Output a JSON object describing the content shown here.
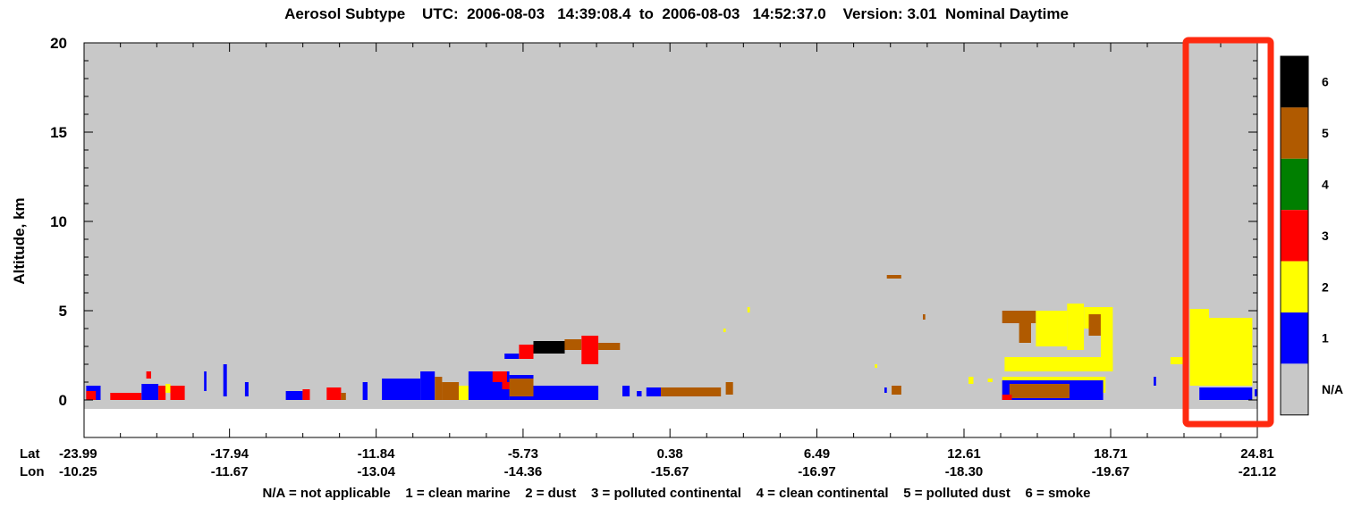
{
  "chart_data": {
    "type": "heatmap",
    "title": "Aerosol Subtype    UTC:  2006-08-03   14:39:08.4  to  2006-08-03   14:52:37.0    Version: 3.01  Nominal Daytime",
    "ylabel": "Altitude, km",
    "ylim": [
      -0.5,
      20
    ],
    "yticks": [
      "0",
      "5",
      "10",
      "15",
      "20"
    ],
    "x_row_labels": [
      "Lat",
      "Lon"
    ],
    "lat_ticks": [
      "-23.99",
      "-17.94",
      "-11.84",
      "-5.73",
      "0.38",
      "6.49",
      "12.61",
      "18.71",
      "24.81"
    ],
    "lon_ticks": [
      "-10.25",
      "-11.67",
      "-13.04",
      "-14.36",
      "-15.67",
      "-16.97",
      "-18.30",
      "-19.67",
      "-21.12"
    ],
    "lat_range": [
      -23.99,
      24.81
    ],
    "legend": {
      "placement": "right",
      "entries": [
        {
          "label": "6",
          "color": "#000000"
        },
        {
          "label": "5",
          "color": "#b05a00"
        },
        {
          "label": "4",
          "color": "#007f00"
        },
        {
          "label": "3",
          "color": "#ff0000"
        },
        {
          "label": "2",
          "color": "#ffff00"
        },
        {
          "label": "1",
          "color": "#0000ff"
        },
        {
          "label": "N/A",
          "color": "#c8c8c8"
        }
      ]
    },
    "footer": "N/A = not applicable    1 = clean marine    2 = dust    3 = polluted continental    4 = clean continental    5 = polluted dust    6 = smoke",
    "highlight_box_color": "#ff2a10",
    "segments": [
      {
        "lat": [
          -23.9,
          -23.3
        ],
        "alt": [
          0.0,
          0.8
        ],
        "code": 1
      },
      {
        "lat": [
          -23.9,
          -23.5
        ],
        "alt": [
          0.0,
          0.5
        ],
        "code": 3
      },
      {
        "lat": [
          -22.9,
          -22.3
        ],
        "alt": [
          0.0,
          0.4
        ],
        "code": 3
      },
      {
        "lat": [
          -22.4,
          -21.6
        ],
        "alt": [
          0.0,
          0.4
        ],
        "code": 3
      },
      {
        "lat": [
          -21.6,
          -20.9
        ],
        "alt": [
          0.0,
          0.9
        ],
        "code": 1
      },
      {
        "lat": [
          -21.4,
          -21.2
        ],
        "alt": [
          1.2,
          1.6
        ],
        "code": 3
      },
      {
        "lat": [
          -20.9,
          -20.6
        ],
        "alt": [
          0.0,
          0.8
        ],
        "code": 3
      },
      {
        "lat": [
          -20.6,
          -20.4
        ],
        "alt": [
          0.4,
          0.9
        ],
        "code": 2
      },
      {
        "lat": [
          -20.4,
          -19.8
        ],
        "alt": [
          0.0,
          0.8
        ],
        "code": 3
      },
      {
        "lat": [
          -19.0,
          -18.9
        ],
        "alt": [
          0.5,
          1.6
        ],
        "code": 1
      },
      {
        "lat": [
          -18.2,
          -18.05
        ],
        "alt": [
          0.2,
          2.0
        ],
        "code": 1
      },
      {
        "lat": [
          -17.3,
          -17.15
        ],
        "alt": [
          0.2,
          1.0
        ],
        "code": 1
      },
      {
        "lat": [
          -15.6,
          -14.9
        ],
        "alt": [
          0.0,
          0.5
        ],
        "code": 1
      },
      {
        "lat": [
          -14.9,
          -14.6
        ],
        "alt": [
          0.0,
          0.6
        ],
        "code": 3
      },
      {
        "lat": [
          -13.9,
          -13.3
        ],
        "alt": [
          0.0,
          0.7
        ],
        "code": 3
      },
      {
        "lat": [
          -13.3,
          -13.1
        ],
        "alt": [
          0.0,
          0.4
        ],
        "code": 5
      },
      {
        "lat": [
          -12.4,
          -12.2
        ],
        "alt": [
          0.0,
          1.0
        ],
        "code": 1
      },
      {
        "lat": [
          -11.6,
          -10.0
        ],
        "alt": [
          0.0,
          1.2
        ],
        "code": 1
      },
      {
        "lat": [
          -10.0,
          -9.4
        ],
        "alt": [
          0.0,
          1.6
        ],
        "code": 1
      },
      {
        "lat": [
          -9.4,
          -9.1
        ],
        "alt": [
          0.0,
          1.3
        ],
        "code": 5
      },
      {
        "lat": [
          -9.1,
          -8.4
        ],
        "alt": [
          0.0,
          1.0
        ],
        "code": 5
      },
      {
        "lat": [
          -8.4,
          -8.0
        ],
        "alt": [
          0.0,
          0.8
        ],
        "code": 2
      },
      {
        "lat": [
          -8.0,
          -6.3
        ],
        "alt": [
          0.0,
          1.6
        ],
        "code": 1
      },
      {
        "lat": [
          -7.0,
          -6.4
        ],
        "alt": [
          1.0,
          1.6
        ],
        "code": 3
      },
      {
        "lat": [
          -6.3,
          -5.3
        ],
        "alt": [
          0.0,
          1.4
        ],
        "code": 1
      },
      {
        "lat": [
          -6.6,
          -6.0
        ],
        "alt": [
          0.6,
          1.0
        ],
        "code": 3
      },
      {
        "lat": [
          -6.3,
          -5.3
        ],
        "alt": [
          0.2,
          1.2
        ],
        "code": 5
      },
      {
        "lat": [
          -5.3,
          -2.6
        ],
        "alt": [
          0.0,
          0.8
        ],
        "code": 1
      },
      {
        "lat": [
          -6.5,
          -5.9
        ],
        "alt": [
          2.3,
          2.6
        ],
        "code": 1
      },
      {
        "lat": [
          -5.9,
          -5.3
        ],
        "alt": [
          2.3,
          3.1
        ],
        "code": 3
      },
      {
        "lat": [
          -5.3,
          -4.0
        ],
        "alt": [
          2.6,
          3.3
        ],
        "code": 6
      },
      {
        "lat": [
          -4.0,
          -3.3
        ],
        "alt": [
          2.8,
          3.4
        ],
        "code": 5
      },
      {
        "lat": [
          -3.3,
          -2.6
        ],
        "alt": [
          2.0,
          3.6
        ],
        "code": 3
      },
      {
        "lat": [
          -2.6,
          -1.7
        ],
        "alt": [
          2.8,
          3.2
        ],
        "code": 5
      },
      {
        "lat": [
          -1.6,
          -1.3
        ],
        "alt": [
          0.2,
          0.8
        ],
        "code": 1
      },
      {
        "lat": [
          -1.0,
          -0.8
        ],
        "alt": [
          0.2,
          0.5
        ],
        "code": 1
      },
      {
        "lat": [
          -0.6,
          0.4
        ],
        "alt": [
          0.2,
          0.7
        ],
        "code": 1
      },
      {
        "lat": [
          0.0,
          2.5
        ],
        "alt": [
          0.2,
          0.7
        ],
        "code": 5
      },
      {
        "lat": [
          2.7,
          3.0
        ],
        "alt": [
          0.3,
          1.0
        ],
        "code": 5
      },
      {
        "lat": [
          9.4,
          10.0
        ],
        "alt": [
          6.8,
          7.0
        ],
        "code": 5
      },
      {
        "lat": [
          9.6,
          10.0
        ],
        "alt": [
          0.3,
          0.8
        ],
        "code": 5
      },
      {
        "lat": [
          9.3,
          9.4
        ],
        "alt": [
          0.4,
          0.7
        ],
        "code": 1
      },
      {
        "lat": [
          10.9,
          11.0
        ],
        "alt": [
          4.5,
          4.8
        ],
        "code": 5
      },
      {
        "lat": [
          8.9,
          9.0
        ],
        "alt": [
          1.8,
          2.0
        ],
        "code": 2
      },
      {
        "lat": [
          3.6,
          3.7
        ],
        "alt": [
          4.9,
          5.2
        ],
        "code": 2
      },
      {
        "lat": [
          2.6,
          2.7
        ],
        "alt": [
          3.8,
          4.0
        ],
        "code": 2
      },
      {
        "lat": [
          12.8,
          13.0
        ],
        "alt": [
          0.9,
          1.3
        ],
        "code": 2
      },
      {
        "lat": [
          13.6,
          13.8
        ],
        "alt": [
          1.0,
          1.2
        ],
        "code": 2
      },
      {
        "lat": [
          14.2,
          15.6
        ],
        "alt": [
          4.3,
          5.0
        ],
        "code": 5
      },
      {
        "lat": [
          14.9,
          15.4
        ],
        "alt": [
          3.2,
          4.3
        ],
        "code": 5
      },
      {
        "lat": [
          15.6,
          16.9
        ],
        "alt": [
          3.0,
          5.0
        ],
        "code": 2
      },
      {
        "lat": [
          16.9,
          17.6
        ],
        "alt": [
          2.8,
          5.4
        ],
        "code": 2
      },
      {
        "lat": [
          17.6,
          18.3
        ],
        "alt": [
          4.0,
          5.2
        ],
        "code": 2
      },
      {
        "lat": [
          17.8,
          18.3
        ],
        "alt": [
          3.6,
          4.8
        ],
        "code": 5
      },
      {
        "lat": [
          18.3,
          18.8
        ],
        "alt": [
          1.6,
          5.2
        ],
        "code": 2
      },
      {
        "lat": [
          14.3,
          18.8
        ],
        "alt": [
          1.6,
          2.4
        ],
        "code": 2
      },
      {
        "lat": [
          14.2,
          18.5
        ],
        "alt": [
          0.4,
          1.3
        ],
        "code": 2
      },
      {
        "lat": [
          14.2,
          18.4
        ],
        "alt": [
          0.0,
          1.1
        ],
        "code": 1
      },
      {
        "lat": [
          14.5,
          17.0
        ],
        "alt": [
          0.1,
          0.9
        ],
        "code": 5
      },
      {
        "lat": [
          14.2,
          14.6
        ],
        "alt": [
          0.0,
          0.3
        ],
        "code": 3
      },
      {
        "lat": [
          20.5,
          20.6
        ],
        "alt": [
          0.8,
          1.3
        ],
        "code": 1
      },
      {
        "lat": [
          21.2,
          21.9
        ],
        "alt": [
          2.0,
          2.4
        ],
        "code": 2
      },
      {
        "lat": [
          22.0,
          24.6
        ],
        "alt": [
          0.8,
          4.6
        ],
        "code": 2
      },
      {
        "lat": [
          22.0,
          22.8
        ],
        "alt": [
          0.8,
          5.1
        ],
        "code": 2
      },
      {
        "lat": [
          22.4,
          24.6
        ],
        "alt": [
          0.0,
          0.7
        ],
        "code": 1
      },
      {
        "lat": [
          24.7,
          24.8
        ],
        "alt": [
          0.2,
          0.6
        ],
        "code": 1
      }
    ]
  }
}
